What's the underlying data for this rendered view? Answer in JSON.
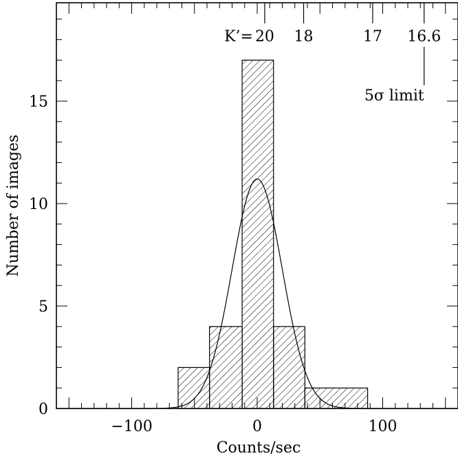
{
  "chart_data": {
    "type": "bar",
    "xlabel": "Counts/sec",
    "ylabel": "Number of images",
    "xlim": [
      -160,
      160
    ],
    "ylim": [
      0,
      19.8
    ],
    "x_ticks": [
      -100,
      0,
      100
    ],
    "x_tick_labels": [
      "−100",
      "0",
      "100"
    ],
    "y_ticks": [
      0,
      5,
      10,
      15
    ],
    "y_tick_labels": [
      "0",
      "5",
      "10",
      "15"
    ],
    "histogram": {
      "fill": "diagonal-hatch",
      "bins": [
        {
          "x0": -63,
          "x1": -38,
          "count": 2
        },
        {
          "x0": -38,
          "x1": -12,
          "count": 4
        },
        {
          "x0": -12,
          "x1": 13,
          "count": 17
        },
        {
          "x0": 13,
          "x1": 38,
          "count": 4
        },
        {
          "x0": 38,
          "x1": 88,
          "count": 1
        }
      ]
    },
    "gaussian_fit": {
      "mean": 0,
      "sigma": 20,
      "peak": 11.2
    },
    "top_axis": {
      "prefix": "K’=",
      "ticks": [
        {
          "x": 6,
          "label": "20"
        },
        {
          "x": 37,
          "label": "18"
        },
        {
          "x": 92,
          "label": "17"
        },
        {
          "x": 133,
          "label": "16.6"
        }
      ]
    },
    "annotation": {
      "text": "5σ limit",
      "x": 133,
      "y": 15
    }
  }
}
